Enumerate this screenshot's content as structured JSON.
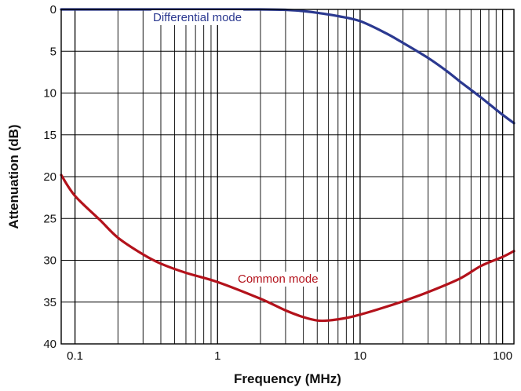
{
  "chart_data": {
    "type": "line",
    "title": "",
    "xlabel": "Frequency (MHz)",
    "ylabel": "Attenuation (dB)",
    "x_scale": "log",
    "xlim": [
      0.08,
      120
    ],
    "ylim": [
      0,
      40
    ],
    "y_inverted": true,
    "grid": true,
    "x_ticks": [
      {
        "value": 0.1,
        "label": "0.1"
      },
      {
        "value": 1,
        "label": "1"
      },
      {
        "value": 10,
        "label": "10"
      },
      {
        "value": 100,
        "label": "100"
      }
    ],
    "y_ticks": [
      {
        "value": 0,
        "label": "0"
      },
      {
        "value": 5,
        "label": "5"
      },
      {
        "value": 10,
        "label": "10"
      },
      {
        "value": 15,
        "label": "15"
      },
      {
        "value": 20,
        "label": "20"
      },
      {
        "value": 25,
        "label": "25"
      },
      {
        "value": 30,
        "label": "30"
      },
      {
        "value": 35,
        "label": "35"
      },
      {
        "value": 40,
        "label": "40"
      }
    ],
    "series": [
      {
        "name": "Differential mode",
        "color": "#2b3990",
        "x": [
          0.08,
          0.2,
          0.5,
          1,
          2,
          3,
          4,
          5,
          7,
          10,
          15,
          20,
          30,
          40,
          50,
          70,
          100,
          120
        ],
        "y": [
          0,
          0,
          0,
          0,
          0,
          0.05,
          0.2,
          0.4,
          0.8,
          1.4,
          2.8,
          4.0,
          5.8,
          7.3,
          8.6,
          10.5,
          12.6,
          13.6
        ]
      },
      {
        "name": "Common mode",
        "color": "#b3121b",
        "x": [
          0.08,
          0.1,
          0.15,
          0.2,
          0.3,
          0.4,
          0.6,
          1,
          2,
          3,
          4,
          5,
          6,
          8,
          10,
          15,
          20,
          30,
          50,
          70,
          100,
          120
        ],
        "y": [
          19.8,
          22.3,
          25.2,
          27.3,
          29.3,
          30.4,
          31.5,
          32.6,
          34.6,
          36.0,
          36.8,
          37.2,
          37.2,
          36.9,
          36.5,
          35.6,
          34.9,
          33.8,
          32.2,
          30.7,
          29.6,
          28.9
        ]
      }
    ]
  }
}
